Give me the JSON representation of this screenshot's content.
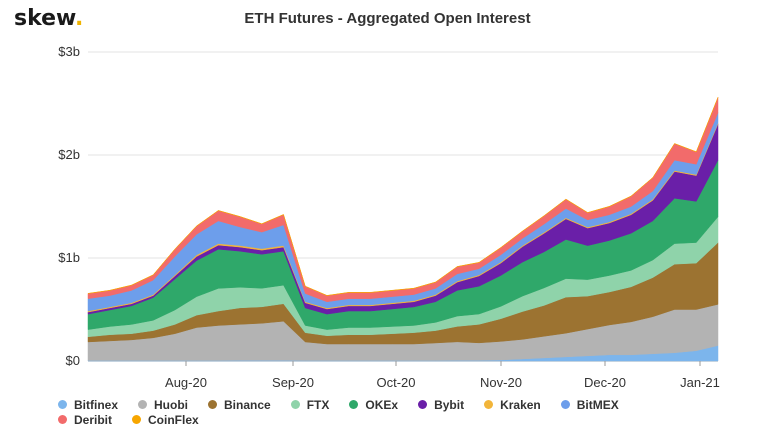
{
  "logo": {
    "text": "skew",
    "dot": "."
  },
  "chart_data": {
    "type": "area",
    "stacked": true,
    "title": "ETH Futures - Aggregated Open Interest",
    "xlabel": "",
    "ylabel": "",
    "x_ticks": [
      "Aug-20",
      "Sep-20",
      "Oct-20",
      "Nov-20",
      "Dec-20",
      "Jan-21"
    ],
    "y_ticks": [
      "$0",
      "$1b",
      "$2b",
      "$3b"
    ],
    "ylim": [
      0,
      3
    ],
    "y_unit": "billions USD",
    "grid": "horizontal",
    "legend_position": "bottom",
    "x": [
      "Jul-01",
      "Jul-08",
      "Jul-15",
      "Jul-22",
      "Jul-29",
      "Aug-05",
      "Aug-12",
      "Aug-19",
      "Aug-26",
      "Sep-01",
      "Sep-03",
      "Sep-10",
      "Sep-17",
      "Sep-24",
      "Oct-01",
      "Oct-08",
      "Oct-15",
      "Oct-22",
      "Oct-29",
      "Nov-05",
      "Nov-12",
      "Nov-19",
      "Nov-26",
      "Dec-03",
      "Dec-10",
      "Dec-17",
      "Dec-24",
      "Dec-31",
      "Jan-04",
      "Jan-06"
    ],
    "series": [
      {
        "name": "Bitfinex",
        "color": "#7cb5ec",
        "values": [
          0.005,
          0.005,
          0.005,
          0.005,
          0.005,
          0.005,
          0.005,
          0.006,
          0.006,
          0.006,
          0.005,
          0.005,
          0.005,
          0.005,
          0.005,
          0.005,
          0.005,
          0.006,
          0.006,
          0.01,
          0.02,
          0.03,
          0.04,
          0.05,
          0.06,
          0.06,
          0.07,
          0.08,
          0.1,
          0.15
        ]
      },
      {
        "name": "Huobi",
        "color": "#b3b3b3",
        "values": [
          0.18,
          0.19,
          0.2,
          0.22,
          0.26,
          0.32,
          0.34,
          0.35,
          0.36,
          0.38,
          0.18,
          0.16,
          0.16,
          0.16,
          0.16,
          0.16,
          0.17,
          0.18,
          0.17,
          0.18,
          0.19,
          0.21,
          0.23,
          0.26,
          0.29,
          0.32,
          0.36,
          0.42,
          0.4,
          0.4
        ]
      },
      {
        "name": "Binance",
        "color": "#9c7331",
        "values": [
          0.05,
          0.06,
          0.06,
          0.07,
          0.09,
          0.12,
          0.14,
          0.16,
          0.16,
          0.17,
          0.09,
          0.08,
          0.09,
          0.09,
          0.1,
          0.11,
          0.12,
          0.15,
          0.18,
          0.22,
          0.27,
          0.3,
          0.35,
          0.32,
          0.32,
          0.34,
          0.38,
          0.44,
          0.45,
          0.6
        ]
      },
      {
        "name": "FTX",
        "color": "#8fd3aa",
        "values": [
          0.07,
          0.08,
          0.09,
          0.1,
          0.14,
          0.18,
          0.22,
          0.2,
          0.18,
          0.18,
          0.07,
          0.06,
          0.07,
          0.07,
          0.07,
          0.07,
          0.08,
          0.1,
          0.1,
          0.12,
          0.15,
          0.17,
          0.18,
          0.16,
          0.16,
          0.16,
          0.17,
          0.2,
          0.2,
          0.25
        ]
      },
      {
        "name": "OKEx",
        "color": "#2fa86a",
        "values": [
          0.15,
          0.16,
          0.18,
          0.22,
          0.3,
          0.35,
          0.38,
          0.35,
          0.33,
          0.33,
          0.17,
          0.15,
          0.16,
          0.16,
          0.17,
          0.18,
          0.2,
          0.25,
          0.27,
          0.3,
          0.33,
          0.35,
          0.38,
          0.33,
          0.34,
          0.36,
          0.38,
          0.44,
          0.4,
          0.55
        ]
      },
      {
        "name": "Bybit",
        "color": "#6a1fa8",
        "values": [
          0.02,
          0.02,
          0.02,
          0.02,
          0.03,
          0.04,
          0.04,
          0.04,
          0.04,
          0.04,
          0.05,
          0.05,
          0.05,
          0.05,
          0.05,
          0.05,
          0.06,
          0.08,
          0.1,
          0.12,
          0.15,
          0.18,
          0.2,
          0.17,
          0.17,
          0.18,
          0.2,
          0.26,
          0.25,
          0.35
        ]
      },
      {
        "name": "Kraken",
        "color": "#f2b53a",
        "values": [
          0.01,
          0.01,
          0.01,
          0.01,
          0.01,
          0.015,
          0.015,
          0.015,
          0.015,
          0.015,
          0.01,
          0.01,
          0.01,
          0.01,
          0.01,
          0.01,
          0.01,
          0.01,
          0.01,
          0.01,
          0.01,
          0.01,
          0.01,
          0.01,
          0.01,
          0.01,
          0.01,
          0.01,
          0.01,
          0.01
        ]
      },
      {
        "name": "BitMEX",
        "color": "#6d9eeb",
        "values": [
          0.12,
          0.11,
          0.12,
          0.14,
          0.18,
          0.2,
          0.22,
          0.18,
          0.16,
          0.2,
          0.08,
          0.06,
          0.06,
          0.06,
          0.06,
          0.06,
          0.06,
          0.07,
          0.06,
          0.07,
          0.07,
          0.08,
          0.09,
          0.07,
          0.07,
          0.07,
          0.08,
          0.1,
          0.1,
          0.1
        ]
      },
      {
        "name": "Deribit",
        "color": "#f26b6b",
        "values": [
          0.05,
          0.05,
          0.05,
          0.05,
          0.07,
          0.08,
          0.1,
          0.1,
          0.08,
          0.1,
          0.07,
          0.06,
          0.06,
          0.06,
          0.06,
          0.06,
          0.06,
          0.07,
          0.06,
          0.07,
          0.07,
          0.08,
          0.09,
          0.07,
          0.08,
          0.1,
          0.13,
          0.16,
          0.12,
          0.15
        ]
      },
      {
        "name": "CoinFlex",
        "color": "#f7a600",
        "values": [
          0.002,
          0.002,
          0.002,
          0.002,
          0.002,
          0.002,
          0.002,
          0.002,
          0.002,
          0.002,
          0.002,
          0.002,
          0.002,
          0.002,
          0.002,
          0.002,
          0.002,
          0.002,
          0.002,
          0.002,
          0.002,
          0.002,
          0.002,
          0.002,
          0.002,
          0.002,
          0.002,
          0.002,
          0.002,
          0.002
        ]
      }
    ]
  }
}
